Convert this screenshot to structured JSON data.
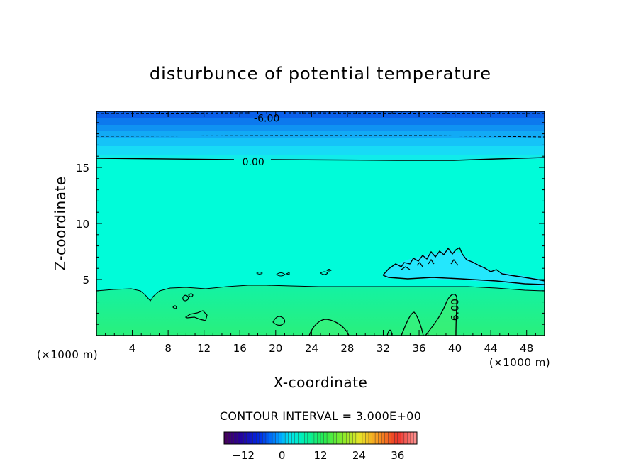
{
  "chart_data": {
    "type": "contour",
    "title": "disturbunce of potential temperature",
    "xlabel": "X-coordinate",
    "ylabel": "Z-coordinate",
    "x_unit": "(×1000 m)",
    "y_unit": "(×1000 m)",
    "xlim": [
      0,
      50
    ],
    "ylim": [
      0,
      20
    ],
    "x_ticks": [
      4,
      8,
      12,
      16,
      20,
      24,
      28,
      32,
      36,
      40,
      44,
      48
    ],
    "y_ticks": [
      5,
      10,
      15
    ],
    "contour_interval_label": "CONTOUR INTERVAL = 3.000E+00",
    "contour_labels": [
      {
        "text": "-6.00",
        "x": 19,
        "y": 19.4
      },
      {
        "text": "0.00",
        "x": 17.5,
        "y": 15.5
      },
      {
        "text": "6.00",
        "x": 40,
        "y": 2.3
      }
    ],
    "colorbar": {
      "min": -18,
      "max": 42,
      "ticks": [
        -12,
        0,
        12,
        24,
        36
      ],
      "ticks_text": [
        "−12",
        "0",
        "12",
        "24",
        "36"
      ]
    }
  },
  "colors": {
    "top_band": [
      "#0a5fe8",
      "#0c74ee",
      "#0f8df2",
      "#12a6f6",
      "#15c0f8",
      "#18daf7"
    ],
    "mid": "#00ffd8",
    "low": "#10f090",
    "warm_patch": "#20e6ff"
  }
}
